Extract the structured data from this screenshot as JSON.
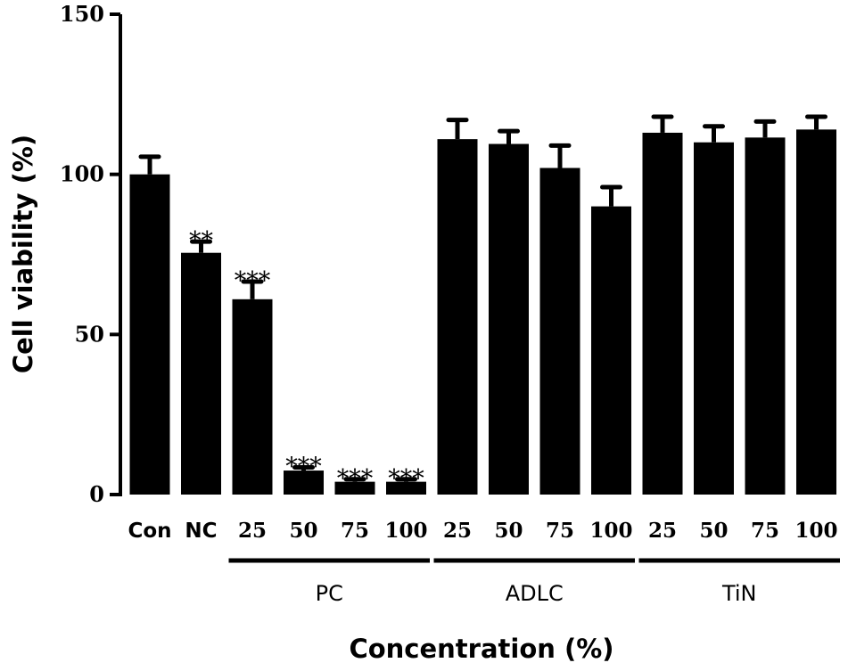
{
  "chart_data": {
    "type": "bar",
    "title": "",
    "ylabel": "Cell viability (%)",
    "xlabel": "Concentration (%)",
    "ylim": [
      0,
      150
    ],
    "yticks": [
      "0",
      "50",
      "100",
      "150"
    ],
    "categories": [
      "Con",
      "NC",
      "25",
      "50",
      "75",
      "100",
      "25",
      "50",
      "75",
      "100",
      "25",
      "50",
      "75",
      "100"
    ],
    "values": [
      100,
      75.5,
      61,
      7.5,
      4,
      4,
      111,
      109.5,
      102,
      90,
      113,
      110,
      111.5,
      114
    ],
    "errors": [
      5.5,
      3.5,
      5.5,
      1,
      0.8,
      0.8,
      6,
      4,
      7,
      6,
      5,
      5,
      5,
      4
    ],
    "significance": [
      "",
      "**",
      "***",
      "***",
      "***",
      "***",
      "",
      "",
      "",
      "",
      "",
      "",
      "",
      ""
    ],
    "groups": [
      {
        "name": "PC",
        "categories": [
          "25",
          "50",
          "75",
          "100"
        ]
      },
      {
        "name": "ADLC",
        "categories": [
          "25",
          "50",
          "75",
          "100"
        ]
      },
      {
        "name": "TiN",
        "categories": [
          "25",
          "50",
          "75",
          "100"
        ]
      }
    ],
    "bar_color": "#000000",
    "grid": false
  }
}
